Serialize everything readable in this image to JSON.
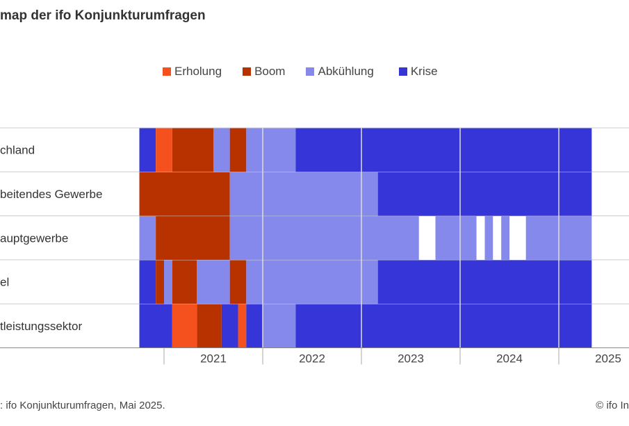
{
  "title": "map der ifo Konjunkturumfragen",
  "footer": {
    "source": ": ifo Konjunkturumfragen, Mai 2025.",
    "copyright": "© ifo In"
  },
  "colors": {
    "Erholung": "#f4511e",
    "Boom": "#b83200",
    "Abkühlung": "#8689ec",
    "Krise": "#3535d8",
    "gap": "#ffffff",
    "grid": "#cccccc",
    "separator": "#dddddd"
  },
  "chart_data": {
    "type": "heatmap",
    "title": "map der ifo Konjunkturumfragen",
    "legend": [
      "Erholung",
      "Boom",
      "Abkühlung",
      "Krise"
    ],
    "legend_position": "top",
    "x_axis": {
      "start": "2020-10",
      "end": "2025-06",
      "unit": "month",
      "tick_labels": [
        "2021",
        "2022",
        "2023",
        "2024",
        "2025"
      ]
    },
    "rows": [
      {
        "label": "chland",
        "states": [
          {
            "start": "2020-10",
            "end": "2020-12",
            "phase": "Krise"
          },
          {
            "start": "2020-12",
            "end": "2021-02",
            "phase": "Erholung"
          },
          {
            "start": "2021-02",
            "end": "2021-07",
            "phase": "Boom"
          },
          {
            "start": "2021-07",
            "end": "2021-09",
            "phase": "Abkühlung"
          },
          {
            "start": "2021-09",
            "end": "2021-11",
            "phase": "Boom"
          },
          {
            "start": "2021-11",
            "end": "2022-05",
            "phase": "Abkühlung"
          },
          {
            "start": "2022-05",
            "end": "2025-05",
            "phase": "Krise"
          }
        ]
      },
      {
        "label": "beitendes Gewerbe",
        "states": [
          {
            "start": "2020-10",
            "end": "2021-09",
            "phase": "Boom"
          },
          {
            "start": "2021-09",
            "end": "2023-03",
            "phase": "Abkühlung"
          },
          {
            "start": "2023-03",
            "end": "2025-05",
            "phase": "Krise"
          }
        ]
      },
      {
        "label": "auptgewerbe",
        "states": [
          {
            "start": "2020-10",
            "end": "2020-12",
            "phase": "Abkühlung"
          },
          {
            "start": "2020-12",
            "end": "2021-09",
            "phase": "Boom"
          },
          {
            "start": "2021-09",
            "end": "2023-08",
            "phase": "Abkühlung"
          },
          {
            "start": "2023-08",
            "end": "2023-10",
            "phase": "gap"
          },
          {
            "start": "2023-10",
            "end": "2024-03",
            "phase": "Abkühlung"
          },
          {
            "start": "2024-03",
            "end": "2024-04",
            "phase": "gap"
          },
          {
            "start": "2024-04",
            "end": "2024-05",
            "phase": "Abkühlung"
          },
          {
            "start": "2024-05",
            "end": "2024-06",
            "phase": "gap"
          },
          {
            "start": "2024-06",
            "end": "2024-07",
            "phase": "Abkühlung"
          },
          {
            "start": "2024-07",
            "end": "2024-09",
            "phase": "gap"
          },
          {
            "start": "2024-09",
            "end": "2025-05",
            "phase": "Abkühlung"
          }
        ]
      },
      {
        "label": "el",
        "states": [
          {
            "start": "2020-10",
            "end": "2020-12",
            "phase": "Krise"
          },
          {
            "start": "2020-12",
            "end": "2021-01",
            "phase": "Boom"
          },
          {
            "start": "2021-01",
            "end": "2021-02",
            "phase": "Abkühlung"
          },
          {
            "start": "2021-02",
            "end": "2021-05",
            "phase": "Boom"
          },
          {
            "start": "2021-05",
            "end": "2021-09",
            "phase": "Abkühlung"
          },
          {
            "start": "2021-09",
            "end": "2021-11",
            "phase": "Boom"
          },
          {
            "start": "2021-11",
            "end": "2023-03",
            "phase": "Abkühlung"
          },
          {
            "start": "2023-03",
            "end": "2025-05",
            "phase": "Krise"
          }
        ]
      },
      {
        "label": "tleistungssektor",
        "states": [
          {
            "start": "2020-10",
            "end": "2021-02",
            "phase": "Krise"
          },
          {
            "start": "2021-02",
            "end": "2021-05",
            "phase": "Erholung"
          },
          {
            "start": "2021-05",
            "end": "2021-08",
            "phase": "Boom"
          },
          {
            "start": "2021-08",
            "end": "2021-10",
            "phase": "Krise"
          },
          {
            "start": "2021-10",
            "end": "2021-11",
            "phase": "Erholung"
          },
          {
            "start": "2021-11",
            "end": "2022-01",
            "phase": "Krise"
          },
          {
            "start": "2022-01",
            "end": "2022-05",
            "phase": "Abkühlung"
          },
          {
            "start": "2022-05",
            "end": "2025-05",
            "phase": "Krise"
          }
        ]
      }
    ]
  }
}
